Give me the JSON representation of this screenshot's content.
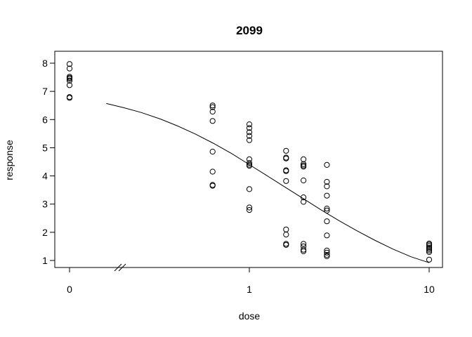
{
  "chart_data": {
    "type": "scatter",
    "title": "2099",
    "xlabel": "dose",
    "ylabel": "response",
    "x_scale": "log (with break; 0 plotted at left)",
    "xlim": [
      0.1,
      10
    ],
    "ylim": [
      1,
      8
    ],
    "x_ticks": [
      {
        "value": 0,
        "label": "0"
      },
      {
        "value": 1,
        "label": "1"
      },
      {
        "value": 10,
        "label": "10"
      }
    ],
    "y_ticks": [
      {
        "value": 1,
        "label": "1"
      },
      {
        "value": 2,
        "label": "2"
      },
      {
        "value": 3,
        "label": "3"
      },
      {
        "value": 4,
        "label": "4"
      },
      {
        "value": 5,
        "label": "5"
      },
      {
        "value": 6,
        "label": "6"
      },
      {
        "value": 7,
        "label": "7"
      },
      {
        "value": 8,
        "label": "8"
      }
    ],
    "axis_break": "x axis between 0 and lowest positive dose",
    "grid": false,
    "points": [
      {
        "x": 0,
        "y": 7.97
      },
      {
        "x": 0,
        "y": 7.81
      },
      {
        "x": 0,
        "y": 7.52
      },
      {
        "x": 0,
        "y": 7.48
      },
      {
        "x": 0,
        "y": 7.44
      },
      {
        "x": 0,
        "y": 7.38
      },
      {
        "x": 0,
        "y": 7.22
      },
      {
        "x": 0,
        "y": 6.8
      },
      {
        "x": 0,
        "y": 6.77
      },
      {
        "x": 0.625,
        "y": 6.5
      },
      {
        "x": 0.625,
        "y": 6.44
      },
      {
        "x": 0.625,
        "y": 6.28
      },
      {
        "x": 0.625,
        "y": 5.95
      },
      {
        "x": 0.625,
        "y": 4.86
      },
      {
        "x": 0.625,
        "y": 4.15
      },
      {
        "x": 0.625,
        "y": 3.68
      },
      {
        "x": 0.625,
        "y": 3.65
      },
      {
        "x": 1,
        "y": 5.83
      },
      {
        "x": 1,
        "y": 5.7
      },
      {
        "x": 1,
        "y": 5.55
      },
      {
        "x": 1,
        "y": 5.42
      },
      {
        "x": 1,
        "y": 5.27
      },
      {
        "x": 1,
        "y": 4.59
      },
      {
        "x": 1,
        "y": 4.46
      },
      {
        "x": 1,
        "y": 4.4
      },
      {
        "x": 1,
        "y": 4.36
      },
      {
        "x": 1,
        "y": 3.53
      },
      {
        "x": 1,
        "y": 2.88
      },
      {
        "x": 1,
        "y": 2.79
      },
      {
        "x": 1.6,
        "y": 4.89
      },
      {
        "x": 1.6,
        "y": 4.65
      },
      {
        "x": 1.6,
        "y": 4.62
      },
      {
        "x": 1.6,
        "y": 4.2
      },
      {
        "x": 1.6,
        "y": 4.17
      },
      {
        "x": 1.6,
        "y": 3.82
      },
      {
        "x": 1.6,
        "y": 2.1
      },
      {
        "x": 1.6,
        "y": 1.92
      },
      {
        "x": 1.6,
        "y": 1.59
      },
      {
        "x": 1.6,
        "y": 1.55
      },
      {
        "x": 2,
        "y": 4.59
      },
      {
        "x": 2,
        "y": 4.42
      },
      {
        "x": 2,
        "y": 4.37
      },
      {
        "x": 2,
        "y": 4.33
      },
      {
        "x": 2,
        "y": 3.84
      },
      {
        "x": 2,
        "y": 3.24
      },
      {
        "x": 2,
        "y": 3.08
      },
      {
        "x": 2,
        "y": 1.59
      },
      {
        "x": 2,
        "y": 1.5
      },
      {
        "x": 2,
        "y": 1.38
      },
      {
        "x": 2,
        "y": 1.33
      },
      {
        "x": 2.7,
        "y": 4.39
      },
      {
        "x": 2.7,
        "y": 3.79
      },
      {
        "x": 2.7,
        "y": 3.63
      },
      {
        "x": 2.7,
        "y": 3.3
      },
      {
        "x": 2.7,
        "y": 2.84
      },
      {
        "x": 2.7,
        "y": 2.77
      },
      {
        "x": 2.7,
        "y": 2.39
      },
      {
        "x": 2.7,
        "y": 1.89
      },
      {
        "x": 2.7,
        "y": 1.35
      },
      {
        "x": 2.7,
        "y": 1.28
      },
      {
        "x": 2.7,
        "y": 1.2
      },
      {
        "x": 2.7,
        "y": 1.15
      },
      {
        "x": 10,
        "y": 1.6
      },
      {
        "x": 10,
        "y": 1.56
      },
      {
        "x": 10,
        "y": 1.51
      },
      {
        "x": 10,
        "y": 1.45
      },
      {
        "x": 10,
        "y": 1.4
      },
      {
        "x": 10,
        "y": 1.35
      },
      {
        "x": 10,
        "y": 1.3
      },
      {
        "x": 10,
        "y": 1.03
      }
    ],
    "fit_curve": [
      {
        "x": 0.16,
        "y": 6.57
      },
      {
        "x": 0.2,
        "y": 6.42
      },
      {
        "x": 0.25,
        "y": 6.25
      },
      {
        "x": 0.32,
        "y": 6.02
      },
      {
        "x": 0.4,
        "y": 5.77
      },
      {
        "x": 0.5,
        "y": 5.49
      },
      {
        "x": 0.63,
        "y": 5.16
      },
      {
        "x": 0.8,
        "y": 4.79
      },
      {
        "x": 1.0,
        "y": 4.4
      },
      {
        "x": 1.26,
        "y": 4.0
      },
      {
        "x": 1.58,
        "y": 3.6
      },
      {
        "x": 2.0,
        "y": 3.19
      },
      {
        "x": 2.51,
        "y": 2.79
      },
      {
        "x": 3.16,
        "y": 2.41
      },
      {
        "x": 3.98,
        "y": 2.05
      },
      {
        "x": 5.01,
        "y": 1.71
      },
      {
        "x": 6.31,
        "y": 1.4
      },
      {
        "x": 7.94,
        "y": 1.13
      },
      {
        "x": 10,
        "y": 0.92
      }
    ]
  }
}
